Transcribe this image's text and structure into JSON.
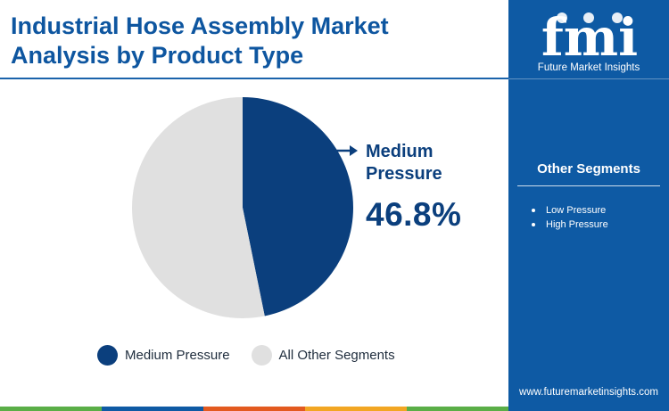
{
  "title": "Industrial Hose Assembly Market Analysis by Product Type",
  "colors": {
    "primary": "#0b3f7d",
    "other": "#e0e0e0",
    "sidebar": "#0e5aa4",
    "bottom_bar": [
      "#5aae47",
      "#0e5aa4",
      "#e35a1f",
      "#f2a623",
      "#5aae47"
    ]
  },
  "chart_data": {
    "type": "pie",
    "labels": [
      "Medium Pressure",
      "All Other Segments"
    ],
    "values": [
      46.8,
      53.2
    ],
    "colors": [
      "#0b3f7d",
      "#e0e0e0"
    ],
    "callout": {
      "label": "Medium Pressure",
      "value": "46.8%"
    },
    "legend": [
      "Medium Pressure",
      "All Other Segments"
    ]
  },
  "sidebar": {
    "logo_text": "fmi",
    "logo_subtitle": "Future Market Insights",
    "segments_title": "Other Segments",
    "segments": [
      "Low Pressure",
      "High Pressure"
    ],
    "website": "www.futuremarketinsights.com"
  }
}
